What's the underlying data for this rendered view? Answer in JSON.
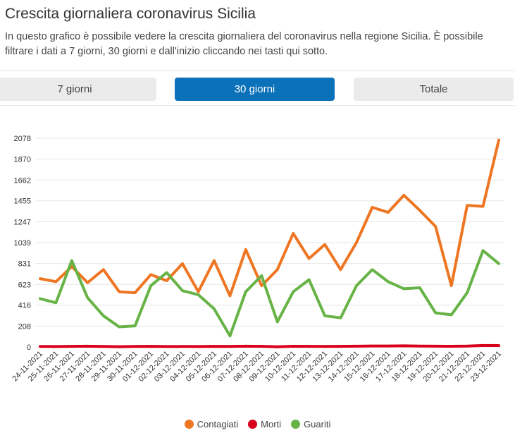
{
  "header": {
    "title": "Crescita giornaliera coronavirus Sicilia",
    "description": "In questo grafico è possibile vedere la crescita giornaliera del coronavirus nella regione Sicilia. È possibile filtrare i dati a 7 giorni, 30 giorni e dall'inizio cliccando nei tasti qui sotto."
  },
  "filters": {
    "btn_7": "7 giorni",
    "btn_30": "30 giorni",
    "btn_total": "Totale",
    "active": "30 giorni"
  },
  "colors": {
    "contagiati": "#ee7623",
    "morti": "#d9001b",
    "guariti": "#67b346",
    "active_button": "#0b71b9"
  },
  "chart_data": {
    "type": "line",
    "x": [
      "24-11-2021",
      "25-11-2021",
      "26-11-2021",
      "27-11-2021",
      "28-11-2021",
      "29-11-2021",
      "30-11-2021",
      "01-12-2021",
      "02-12-2021",
      "03-12-2021",
      "04-12-2021",
      "05-12-2021",
      "06-12-2021",
      "07-12-2021",
      "08-12-2021",
      "09-12-2021",
      "10-12-2021",
      "11-12-2021",
      "12-12-2021",
      "13-12-2021",
      "14-12-2021",
      "15-12-2021",
      "16-12-2021",
      "17-12-2021",
      "18-12-2021",
      "19-12-2021",
      "20-12-2021",
      "21-12-2021",
      "22-12-2021",
      "23-12-2021"
    ],
    "y_ticks": [
      0,
      208,
      416,
      623,
      831,
      1039,
      1247,
      1455,
      1662,
      1870,
      2078
    ],
    "ylim": [
      0,
      2078
    ],
    "grid": true,
    "legend_position": "bottom",
    "series": [
      {
        "name": "Contagiati",
        "color": "#ee7623",
        "values": [
          680,
          650,
          800,
          640,
          770,
          550,
          540,
          720,
          660,
          830,
          550,
          860,
          510,
          970,
          610,
          770,
          1130,
          880,
          1020,
          770,
          1040,
          1390,
          1340,
          1510,
          1360,
          1200,
          610,
          1410,
          1400,
          2060
        ]
      },
      {
        "name": "Morti",
        "color": "#d9001b",
        "values": [
          5,
          4,
          6,
          8,
          5,
          3,
          5,
          6,
          4,
          5,
          4,
          6,
          5,
          8,
          6,
          2,
          7,
          6,
          5,
          6,
          8,
          10,
          10,
          11,
          9,
          8,
          7,
          9,
          15,
          14
        ]
      },
      {
        "name": "Guariti",
        "color": "#67b346",
        "values": [
          480,
          440,
          860,
          490,
          310,
          200,
          210,
          610,
          740,
          560,
          520,
          380,
          110,
          550,
          710,
          250,
          550,
          670,
          310,
          290,
          610,
          770,
          650,
          580,
          590,
          340,
          320,
          540,
          960,
          830
        ]
      }
    ]
  }
}
